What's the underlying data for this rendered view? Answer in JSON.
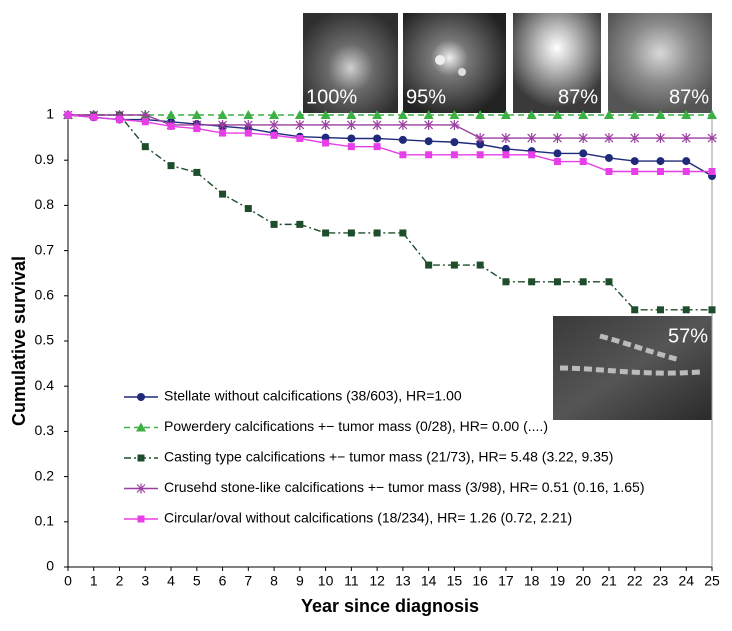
{
  "chart_data": {
    "type": "line",
    "x_label": "Year since diagnosis",
    "y_label": "Cumulative survival",
    "x": [
      0,
      1,
      2,
      3,
      4,
      5,
      6,
      7,
      8,
      9,
      10,
      11,
      12,
      13,
      14,
      15,
      16,
      17,
      18,
      19,
      20,
      21,
      22,
      23,
      24,
      25
    ],
    "xlim": [
      0,
      25
    ],
    "xticks": [
      0,
      1,
      2,
      3,
      4,
      5,
      6,
      7,
      8,
      9,
      10,
      11,
      12,
      13,
      14,
      15,
      16,
      17,
      18,
      19,
      20,
      21,
      22,
      23,
      24,
      25
    ],
    "ylim": [
      0,
      1
    ],
    "yticks": [
      0,
      0.1,
      0.2,
      0.3,
      0.4,
      0.5,
      0.6,
      0.7,
      0.8,
      0.9,
      1
    ],
    "series": [
      {
        "name": "Stellate without calcifications (38/603), HR=1.00",
        "color": "#1f2a7a",
        "marker": "circle",
        "dash": "solid",
        "values": [
          1,
          0.995,
          0.99,
          0.99,
          0.985,
          0.98,
          0.975,
          0.97,
          0.96,
          0.952,
          0.95,
          0.948,
          0.948,
          0.945,
          0.942,
          0.94,
          0.935,
          0.925,
          0.92,
          0.915,
          0.915,
          0.905,
          0.898,
          0.898,
          0.898,
          0.865
        ]
      },
      {
        "name": "Powerdery calcifications +− tumor mass (0/28), HR= 0.00 (....)",
        "color": "#3cb043",
        "marker": "triangle",
        "dash": "dashed",
        "values": [
          1,
          1,
          1,
          1,
          1,
          1,
          1,
          1,
          1,
          1,
          1,
          1,
          1,
          1,
          1,
          1,
          1,
          1,
          1,
          1,
          1,
          1,
          1,
          1,
          1,
          1
        ]
      },
      {
        "name": "Casting type calcifications +− tumor mass (21/73), HR= 5.48 (3.22, 9.35)",
        "color": "#1e4d2b",
        "marker": "square",
        "dash": "dashdot",
        "values": [
          1,
          1,
          1,
          0.93,
          0.888,
          0.873,
          0.825,
          0.793,
          0.758,
          0.758,
          0.739,
          0.739,
          0.739,
          0.739,
          0.668,
          0.668,
          0.668,
          0.631,
          0.631,
          0.631,
          0.631,
          0.631,
          0.569,
          0.569,
          0.569,
          0.569
        ]
      },
      {
        "name": "Crusehd stone-like calcifications +− tumor mass (3/98), HR= 0.51 (0.16, 1.65)",
        "color": "#9b3fa0",
        "marker": "star",
        "dash": "solid",
        "values": [
          1,
          1,
          1,
          1,
          0.978,
          0.978,
          0.978,
          0.978,
          0.978,
          0.978,
          0.978,
          0.978,
          0.978,
          0.978,
          0.978,
          0.978,
          0.949,
          0.949,
          0.949,
          0.949,
          0.949,
          0.949,
          0.949,
          0.949,
          0.949,
          0.949
        ]
      },
      {
        "name": "Circular/oval without calcifications (18/234), HR= 1.26 (0.72, 2.21)",
        "color": "#e83ee8",
        "marker": "square",
        "dash": "solid",
        "values": [
          1,
          0.995,
          0.99,
          0.985,
          0.975,
          0.97,
          0.96,
          0.96,
          0.955,
          0.948,
          0.938,
          0.93,
          0.93,
          0.912,
          0.912,
          0.912,
          0.912,
          0.912,
          0.912,
          0.897,
          0.897,
          0.875,
          0.875,
          0.875,
          0.875,
          0.875
        ]
      }
    ],
    "annotations": [
      {
        "text": "100%"
      },
      {
        "text": "95%"
      },
      {
        "text": "87%"
      },
      {
        "text": "87%"
      },
      {
        "text": "57%"
      }
    ]
  }
}
